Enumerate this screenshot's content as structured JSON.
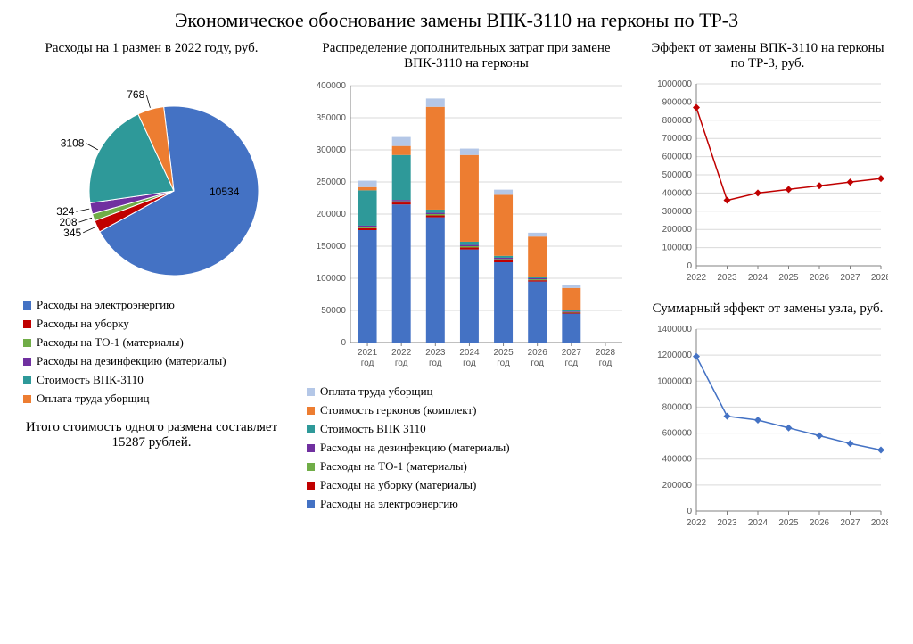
{
  "page_title": "Экономическое обоснование замены ВПК-3110 на герконы по ТР-3",
  "background_color": "#ffffff",
  "text_color": "#000000",
  "pie": {
    "title": "Расходы на 1 размен в 2022 году, руб.",
    "type": "pie",
    "slices": [
      {
        "label": "Расходы на электроэнергию",
        "value": 10534,
        "color": "#4472c4"
      },
      {
        "label": "Расходы на уборку",
        "value": 345,
        "color": "#c00000"
      },
      {
        "label": "Расходы на ТО-1 (материалы)",
        "value": 208,
        "color": "#70ad47"
      },
      {
        "label": "Расходы на дезинфекцию (материалы)",
        "value": 324,
        "color": "#7030a0"
      },
      {
        "label": "Стоимость ВПК-3110",
        "value": 3108,
        "color": "#2e9999"
      },
      {
        "label": "Оплата труда уборщиц",
        "value": 768,
        "color": "#ed7d31"
      }
    ],
    "label_fontsize": 12,
    "leader_color": "#000000",
    "footer": "Итого стоимость одного размена составляет 15287 рублей."
  },
  "stacked": {
    "title": "Распределение дополнительных затрат при замене ВПК-3110 на герконы",
    "type": "stacked-bar",
    "categories": [
      "2021 год",
      "2022 год",
      "2023 год",
      "2024 год",
      "2025 год",
      "2026 год",
      "2027 год",
      "2028 год"
    ],
    "series": [
      {
        "name": "Расходы на электроэнергию",
        "color": "#4472c4",
        "values": [
          175000,
          215000,
          195000,
          145000,
          125000,
          95000,
          45000,
          0
        ]
      },
      {
        "name": "Расходы на уборку (материалы)",
        "color": "#c00000",
        "values": [
          3000,
          3000,
          3000,
          3000,
          3000,
          2000,
          1500,
          0
        ]
      },
      {
        "name": "Расходы на ТО-1 (материалы)",
        "color": "#70ad47",
        "values": [
          2000,
          2000,
          2000,
          2000,
          2000,
          1500,
          1000,
          0
        ]
      },
      {
        "name": "Расходы на дезинфекцию (материалы)",
        "color": "#7030a0",
        "values": [
          2000,
          2000,
          2000,
          2000,
          2000,
          1500,
          1000,
          0
        ]
      },
      {
        "name": "Стоимость ВПК 3110",
        "color": "#2e9999",
        "values": [
          55000,
          70000,
          5000,
          5000,
          3000,
          2000,
          1500,
          0
        ]
      },
      {
        "name": "Стоимость герконов (комплект)",
        "color": "#ed7d31",
        "values": [
          5000,
          14000,
          160000,
          135000,
          95000,
          63000,
          35000,
          0
        ]
      },
      {
        "name": "Оплата труда уборщиц",
        "color": "#b4c7e7",
        "values": [
          10000,
          14000,
          13000,
          10000,
          8000,
          6000,
          4000,
          0
        ]
      }
    ],
    "legend_order": [
      6,
      5,
      4,
      3,
      2,
      1,
      0
    ],
    "y_axis": {
      "min": 0,
      "max": 400000,
      "step": 50000
    },
    "grid_color": "#d9d9d9",
    "axis_color": "#808080",
    "bar_width_ratio": 0.55,
    "label_fontsize": 10
  },
  "line_top": {
    "title": "Эффект от замены ВПК-3110 на герконы по ТР-3, руб.",
    "type": "line",
    "color": "#c00000",
    "marker": "diamond",
    "marker_size": 4,
    "line_width": 1.5,
    "categories": [
      "2022",
      "2023",
      "2024",
      "2025",
      "2026",
      "2027",
      "2028"
    ],
    "values": [
      870000,
      360000,
      400000,
      420000,
      440000,
      460000,
      480000
    ],
    "y_axis": {
      "min": 0,
      "max": 1000000,
      "step": 100000
    },
    "grid_color": "#d9d9d9",
    "axis_color": "#808080",
    "label_fontsize": 10
  },
  "line_bottom": {
    "title": "Суммарный эффект от замены узла, руб.",
    "type": "line",
    "color": "#4472c4",
    "marker": "diamond",
    "marker_size": 4,
    "line_width": 1.5,
    "categories": [
      "2022",
      "2023",
      "2024",
      "2025",
      "2026",
      "2027",
      "2028"
    ],
    "values": [
      1190000,
      730000,
      700000,
      640000,
      580000,
      520000,
      470000
    ],
    "y_axis": {
      "min": 0,
      "max": 1400000,
      "step": 200000
    },
    "grid_color": "#d9d9d9",
    "axis_color": "#808080",
    "label_fontsize": 10
  }
}
